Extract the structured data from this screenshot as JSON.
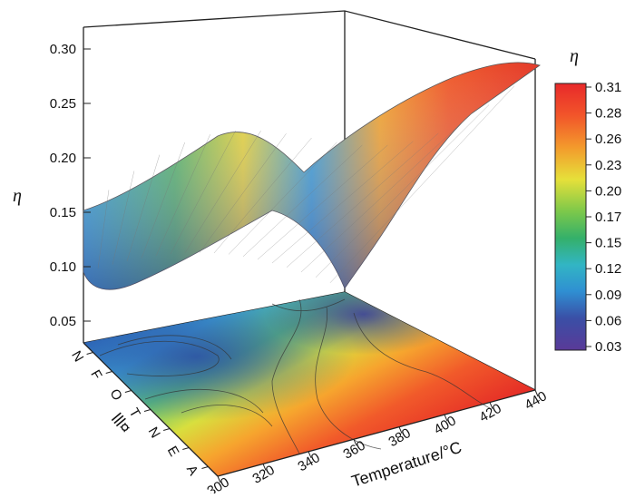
{
  "chart_data": {
    "type": "surface3d",
    "z_label": "η",
    "x_label": "Temperature/°C",
    "y_label": "lll¤",
    "x_ticks": [
      "300",
      "320",
      "340",
      "360",
      "380",
      "400",
      "420",
      "440"
    ],
    "y_ticks": [
      "N",
      "F",
      "O",
      "T",
      "N",
      "E",
      "A"
    ],
    "z_ticks": [
      "0.05",
      "0.10",
      "0.15",
      "0.20",
      "0.25",
      "0.30"
    ],
    "z_range": [
      0.03,
      0.32
    ],
    "x_range": [
      300,
      440
    ],
    "colorbar": {
      "title": "η",
      "ticks": [
        "0.31",
        "0.28",
        "0.26",
        "0.23",
        "0.20",
        "0.17",
        "0.15",
        "0.12",
        "0.09",
        "0.06",
        "0.03"
      ]
    },
    "surface_edge_samples": {
      "front_edge_temperature": [
        300,
        320,
        340,
        360,
        380,
        400,
        420,
        440
      ],
      "front_edge_eta": [
        0.1,
        0.21,
        0.22,
        0.18,
        0.19,
        0.26,
        0.29,
        0.3
      ],
      "back_edge_temperature": [
        300,
        340,
        380,
        420,
        440
      ],
      "back_edge_eta": [
        0.15,
        0.18,
        0.1,
        0.21,
        0.24
      ]
    }
  }
}
